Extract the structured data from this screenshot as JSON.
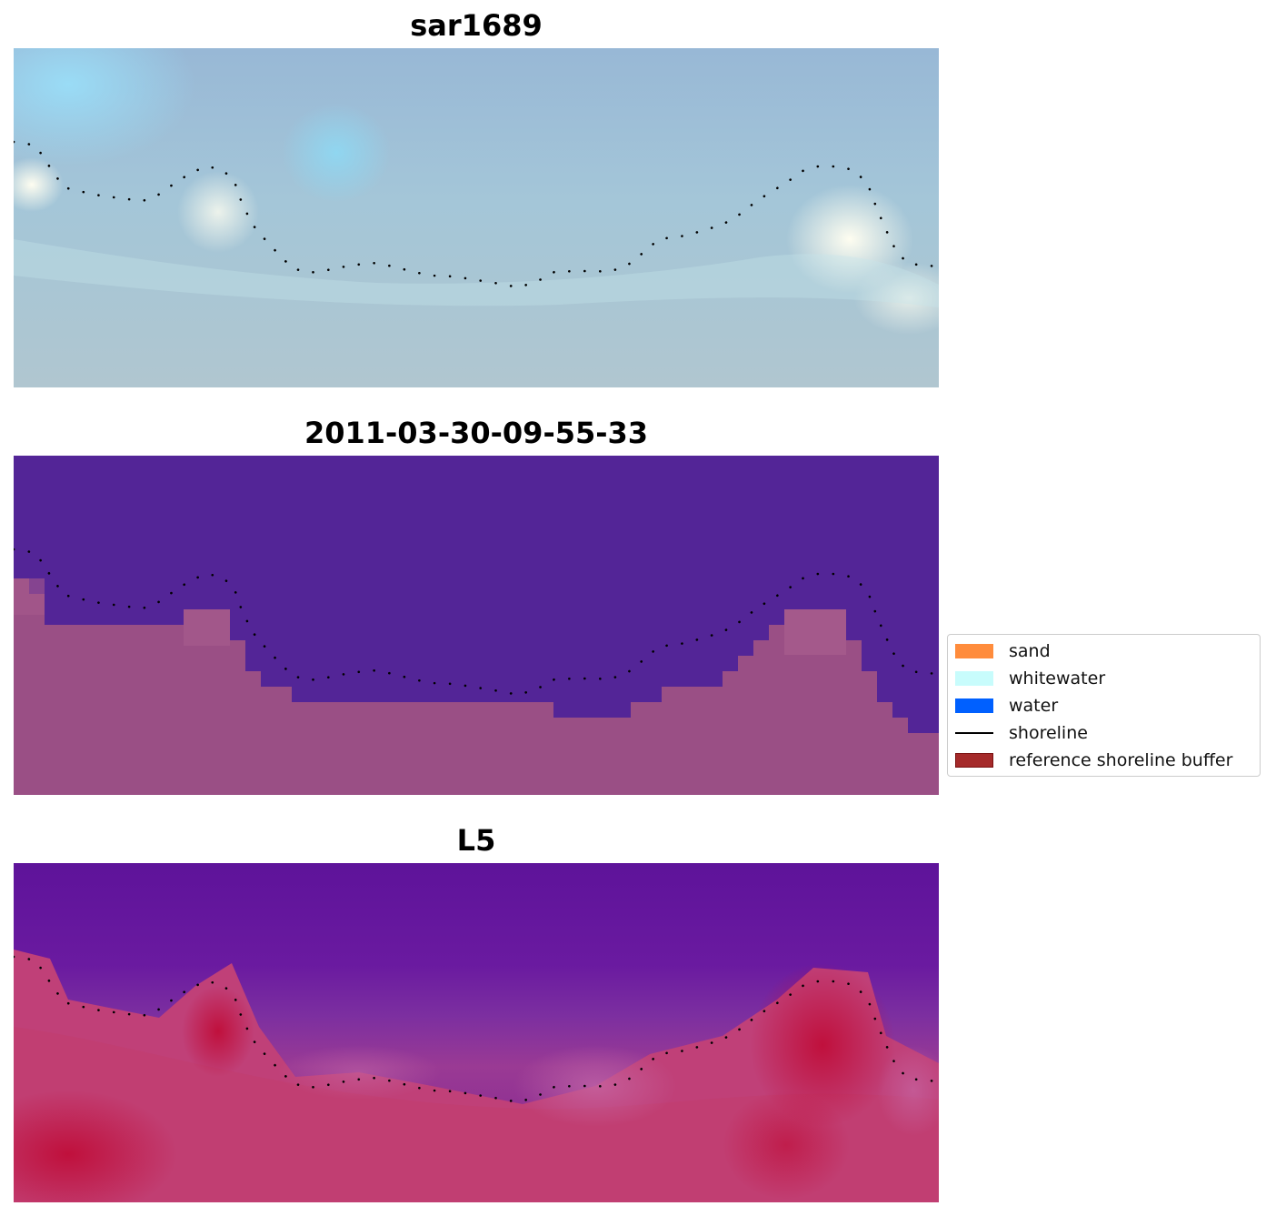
{
  "panels": [
    {
      "title": "sar1689",
      "kind": "rgb"
    },
    {
      "title": "2011-03-30-09-55-33",
      "kind": "classified"
    },
    {
      "title": "L5",
      "kind": "index"
    }
  ],
  "legend": {
    "items": [
      {
        "label": "sand",
        "color": "#ff8c3c",
        "type": "patch"
      },
      {
        "label": "whitewater",
        "color": "#c8fcfc",
        "type": "patch"
      },
      {
        "label": "water",
        "color": "#0060ff",
        "type": "patch"
      },
      {
        "label": "shoreline",
        "color": "#000000",
        "type": "line"
      },
      {
        "label": "reference shoreline buffer",
        "color": "#a52a2a",
        "type": "patch"
      }
    ]
  },
  "colors": {
    "deep_water": "#532597",
    "buffer_overlay": "#9a4f85",
    "shoreline_dots": "#000000"
  }
}
